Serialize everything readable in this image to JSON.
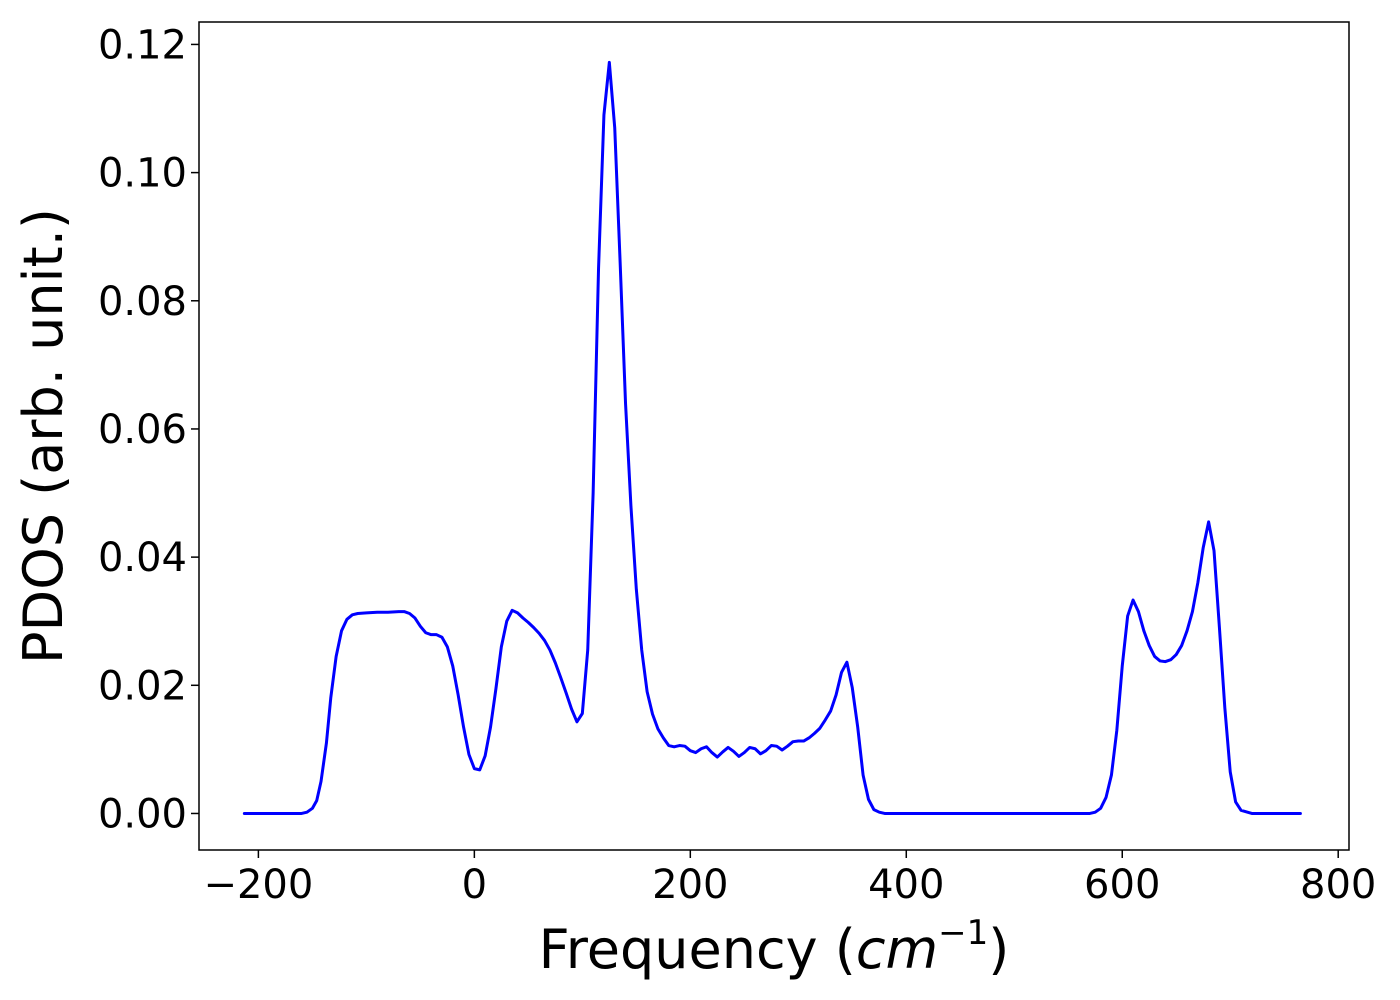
{
  "chart_data": {
    "type": "line",
    "title": "",
    "xlabel": "Frequency",
    "xlabel_unit": "cm",
    "xlabel_unit_exponent": "−1",
    "ylabel": "PDOS (arb. unit.)",
    "xlim": [
      -255,
      810
    ],
    "ylim": [
      -0.0057,
      0.1235
    ],
    "xticks": [
      -200,
      0,
      200,
      400,
      600,
      800
    ],
    "xtick_labels": [
      "−200",
      "0",
      "200",
      "400",
      "600",
      "800"
    ],
    "yticks": [
      0.0,
      0.02,
      0.04,
      0.06,
      0.08,
      0.1,
      0.12
    ],
    "ytick_labels": [
      "0.00",
      "0.02",
      "0.04",
      "0.06",
      "0.08",
      "0.10",
      "0.12"
    ],
    "grid": false,
    "legend": "none",
    "series": [
      {
        "color": "#0000ff",
        "x": [
          -213,
          -200,
          -180,
          -160,
          -155,
          -150,
          -146,
          -142,
          -137,
          -133,
          -128,
          -123,
          -118,
          -113,
          -108,
          -100,
          -90,
          -80,
          -70,
          -65,
          -60,
          -55,
          -50,
          -45,
          -40,
          -35,
          -30,
          -25,
          -20,
          -15,
          -10,
          -5,
          0,
          5,
          10,
          15,
          20,
          25,
          30,
          35,
          40,
          45,
          50,
          55,
          60,
          65,
          70,
          75,
          80,
          85,
          90,
          95,
          100,
          105,
          110,
          115,
          120,
          125,
          130,
          135,
          140,
          145,
          150,
          155,
          160,
          165,
          170,
          175,
          180,
          185,
          190,
          195,
          200,
          205,
          210,
          215,
          220,
          225,
          230,
          235,
          240,
          245,
          250,
          255,
          260,
          265,
          270,
          275,
          280,
          285,
          290,
          295,
          300,
          305,
          310,
          315,
          320,
          325,
          330,
          335,
          340,
          345,
          350,
          355,
          360,
          365,
          370,
          375,
          380,
          400,
          450,
          500,
          550,
          570,
          575,
          580,
          585,
          590,
          595,
          600,
          605,
          610,
          615,
          620,
          625,
          630,
          635,
          640,
          645,
          650,
          655,
          660,
          665,
          670,
          675,
          680,
          685,
          690,
          695,
          700,
          705,
          710,
          720,
          740,
          765
        ],
        "y": [
          0.0,
          0.0,
          0.0,
          0.0,
          0.0002,
          0.0008,
          0.002,
          0.005,
          0.011,
          0.018,
          0.0245,
          0.0285,
          0.0303,
          0.031,
          0.0312,
          0.0313,
          0.0314,
          0.0314,
          0.0315,
          0.0315,
          0.0312,
          0.0305,
          0.0292,
          0.0282,
          0.0279,
          0.0279,
          0.0275,
          0.026,
          0.023,
          0.0185,
          0.0135,
          0.0092,
          0.007,
          0.0068,
          0.009,
          0.0135,
          0.0195,
          0.026,
          0.03,
          0.0317,
          0.0313,
          0.0305,
          0.0298,
          0.029,
          0.0281,
          0.027,
          0.0255,
          0.0235,
          0.0212,
          0.0188,
          0.0163,
          0.0143,
          0.0156,
          0.0255,
          0.05,
          0.085,
          0.109,
          0.1172,
          0.107,
          0.086,
          0.064,
          0.048,
          0.035,
          0.0255,
          0.019,
          0.0155,
          0.0132,
          0.0118,
          0.0106,
          0.0104,
          0.0106,
          0.0105,
          0.0098,
          0.0095,
          0.0101,
          0.0104,
          0.0095,
          0.0088,
          0.0096,
          0.0103,
          0.0097,
          0.0089,
          0.0095,
          0.0103,
          0.0101,
          0.0093,
          0.0098,
          0.0106,
          0.0105,
          0.0099,
          0.0105,
          0.0112,
          0.0113,
          0.0113,
          0.0118,
          0.0125,
          0.0133,
          0.0146,
          0.016,
          0.0185,
          0.022,
          0.0236,
          0.0196,
          0.0135,
          0.006,
          0.0022,
          0.0006,
          0.0002,
          0.0,
          0.0,
          0.0,
          0.0,
          0.0,
          0.0,
          0.0002,
          0.0008,
          0.0025,
          0.006,
          0.013,
          0.023,
          0.0308,
          0.0333,
          0.0315,
          0.0285,
          0.0262,
          0.0245,
          0.0238,
          0.0237,
          0.024,
          0.0248,
          0.0262,
          0.0285,
          0.0315,
          0.036,
          0.0415,
          0.0455,
          0.041,
          0.029,
          0.0165,
          0.0065,
          0.0018,
          0.0005,
          0.0,
          0.0,
          0.0
        ]
      }
    ]
  }
}
